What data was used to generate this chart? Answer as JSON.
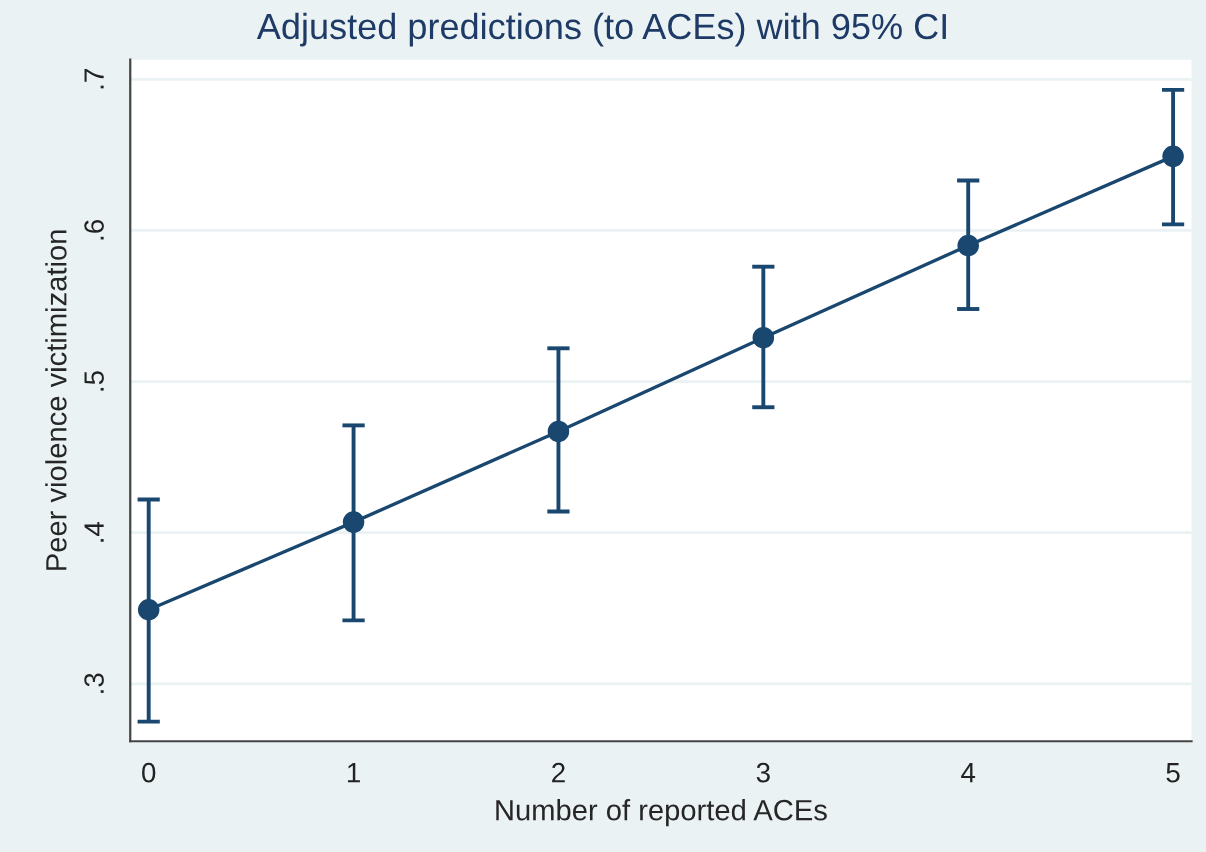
{
  "chart_data": {
    "type": "line",
    "title": "Adjusted predictions (to ACEs) with 95% CI",
    "xlabel": "Number of reported ACEs",
    "ylabel": "Peer violence victimization",
    "x": [
      0,
      1,
      2,
      3,
      4,
      5
    ],
    "series": [
      {
        "color": "#1a476f",
        "values": [
          0.349,
          0.407,
          0.467,
          0.529,
          0.59,
          0.649
        ],
        "errors": [
          [
            0.275,
            0.422
          ],
          [
            0.342,
            0.471
          ],
          [
            0.414,
            0.522
          ],
          [
            0.483,
            0.576
          ],
          [
            0.548,
            0.633
          ],
          [
            0.604,
            0.693
          ]
        ]
      }
    ],
    "xlim": [
      -0.09,
      5.09
    ],
    "ylim": [
      0.262,
      0.713
    ],
    "xticks": [
      0,
      1,
      2,
      3,
      4,
      5
    ],
    "yticks": [
      {
        "value": 0.3,
        "label": ".3"
      },
      {
        "value": 0.4,
        "label": ".4"
      },
      {
        "value": 0.5,
        "label": ".5"
      },
      {
        "value": 0.6,
        "label": ".6"
      },
      {
        "value": 0.7,
        "label": ".7"
      }
    ],
    "grid": "y",
    "marker": "circle",
    "line_style": "solid",
    "legend": false
  }
}
